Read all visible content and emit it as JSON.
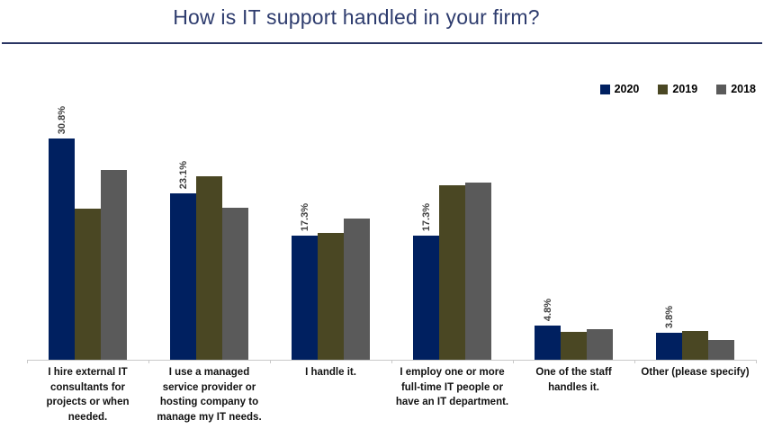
{
  "header": {
    "title": "How is IT support handled in your firm?",
    "title_color": "#2e3c6e",
    "rule_color": "#2a3563"
  },
  "legend": {
    "position": "top-right",
    "items": [
      {
        "label": "2020",
        "color": "#002060"
      },
      {
        "label": "2019",
        "color": "#4a4723"
      },
      {
        "label": "2018",
        "color": "#5a5a5a"
      }
    ]
  },
  "chart_data": {
    "type": "bar",
    "title": "How is IT support handled in your firm?",
    "categories": [
      "I hire external IT consultants for projects or when needed.",
      "I use a managed service provider or hosting company to manage my IT needs.",
      "I handle it.",
      "I employ one or more full-time IT people or have an IT department.",
      "One of the staff handles it.",
      "Other (please specify)"
    ],
    "series": [
      {
        "name": "2020",
        "color": "#002060",
        "values": [
          30.8,
          23.1,
          17.3,
          17.3,
          4.8,
          3.8
        ],
        "data_labels": [
          "30.8%",
          "23.1%",
          "17.3%",
          "17.3%",
          "4.8%",
          "3.8%"
        ]
      },
      {
        "name": "2019",
        "color": "#4a4723",
        "values": [
          21.0,
          25.5,
          17.6,
          24.3,
          3.9,
          4.0
        ]
      },
      {
        "name": "2018",
        "color": "#5a5a5a",
        "values": [
          26.4,
          21.2,
          19.7,
          24.7,
          4.2,
          2.7
        ]
      }
    ],
    "data_label_series": "2020",
    "xlabel": "",
    "ylabel": "",
    "ylim": [
      0,
      38.7
    ],
    "grid": false,
    "axis_color": "#c9c9c9",
    "legend_position": "top-right"
  }
}
